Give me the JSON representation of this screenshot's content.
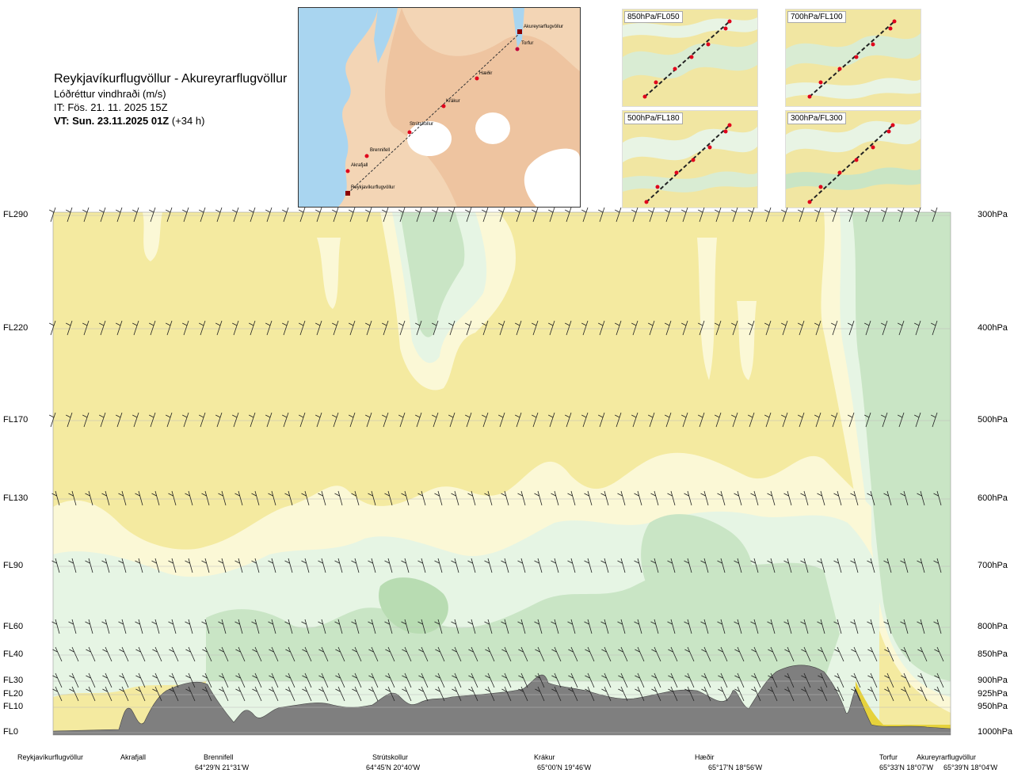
{
  "title": {
    "route": "Reykjavíkurflugvöllur - Akureyrarflugvöllur",
    "variable": "Lóðréttur vindhraði (m/s)",
    "issue_time": "IT: Fös. 21. 11. 2025 15Z",
    "valid_time_bold": "VT: Sun. 23.11.2025 01Z",
    "valid_time_offset": "(+34 h)"
  },
  "colors": {
    "yellow": "#f4eaa0",
    "pale_yellow": "#fbf8d6",
    "light_green": "#e6f5e4",
    "mid_green": "#c9e5c5",
    "green": "#b8dcb2",
    "terrain": "#7f7f7f",
    "dark_yellow": "#e6d23c",
    "map_land": "#f2c9a3",
    "map_sea": "#9fd0ef",
    "route_point": "#e0001b"
  },
  "map": {
    "waypoints": [
      "Akureyrarflugvöllur",
      "Torfur",
      "Hæðir",
      "Krákur",
      "Strútskollur",
      "Brennifell",
      "Akrafjall",
      "Reykjavíkurflugvöllur"
    ]
  },
  "mini_maps": [
    {
      "label": "850hPa/FL050"
    },
    {
      "label": "700hPa/FL100"
    },
    {
      "label": "500hPa/FL180"
    },
    {
      "label": "300hPa/FL300"
    }
  ],
  "levels": [
    {
      "fl": "FL290",
      "p": "300hPa"
    },
    {
      "fl": "FL220",
      "p": "400hPa"
    },
    {
      "fl": "FL170",
      "p": "500hPa"
    },
    {
      "fl": "FL130",
      "p": "600hPa"
    },
    {
      "fl": "FL90",
      "p": "700hPa"
    },
    {
      "fl": "FL60",
      "p": "800hPa"
    },
    {
      "fl": "FL40",
      "p": "850hPa"
    },
    {
      "fl": "FL30",
      "p": "900hPa"
    },
    {
      "fl": "FL20",
      "p": "925hPa"
    },
    {
      "fl": "FL10",
      "p": "950hPa"
    },
    {
      "fl": "FL0",
      "p": "1000hPa"
    }
  ],
  "bottom_waypoints": [
    {
      "name": "Reykjavíkurflugvöllur",
      "coord": ""
    },
    {
      "name": "Akrafjall",
      "coord": ""
    },
    {
      "name": "Brennifell",
      "coord": "64°29'N 21°31'W"
    },
    {
      "name": "Strútskollur",
      "coord": "64°45'N 20°40'W"
    },
    {
      "name": "Krákur",
      "coord": "65°00'N 19°46'W"
    },
    {
      "name": "Hæðir",
      "coord": "65°17'N 18°56'W"
    },
    {
      "name": "Torfur",
      "coord": "65°33'N 18°07'W"
    },
    {
      "name": "Akureyrarflugvöllur",
      "coord": "65°39'N 18°04'W"
    }
  ]
}
